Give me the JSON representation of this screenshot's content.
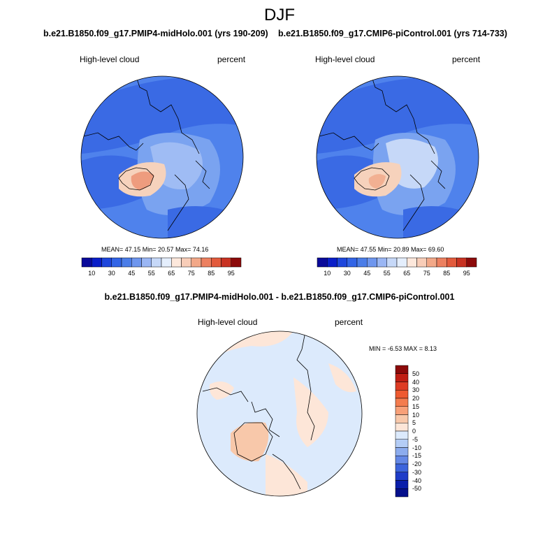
{
  "page_title": "DJF",
  "panels": [
    {
      "title": "b.e21.B1850.f09_g17.PMIP4-midHolo.001 (yrs 190-209)",
      "left_label": "High-level cloud",
      "right_label": "percent",
      "stats": "MEAN=  47.15   Min=  20.57   Max=  74.16"
    },
    {
      "title": "b.e21.B1850.f09_g17.CMIP6-piControl.001 (yrs 714-733)",
      "left_label": "High-level cloud",
      "right_label": "percent",
      "stats": "MEAN=  47.55   Min=  20.89   Max=  69.60"
    }
  ],
  "diff_panel": {
    "title": "b.e21.B1850.f09_g17.PMIP4-midHolo.001 - b.e21.B1850.f09_g17.CMIP6-piControl.001",
    "left_label": "High-level cloud",
    "right_label": "percent",
    "stats": "MIN =  -6.53  MAX =   8.13"
  },
  "colorbar_abs": {
    "labels": [
      "10",
      "30",
      "45",
      "55",
      "65",
      "75",
      "85",
      "95"
    ],
    "colors": [
      "#0a0a9a",
      "#0a1ec8",
      "#1e46dc",
      "#3264e6",
      "#4b7de8",
      "#6e96ee",
      "#9ab6f4",
      "#c6d8f8",
      "#e4eefc",
      "#fde8dc",
      "#f8cdb8",
      "#f2a888",
      "#ec8060",
      "#e25a3c",
      "#c83222",
      "#8c0a0a"
    ]
  },
  "colorbar_diff": {
    "labels": [
      "50",
      "40",
      "30",
      "20",
      "15",
      "10",
      "5",
      "0",
      "-5",
      "-10",
      "-15",
      "-20",
      "-30",
      "-40",
      "-50"
    ],
    "colors": [
      "#8c0a0a",
      "#c01e14",
      "#de3c24",
      "#ee5a30",
      "#f47c4e",
      "#f8a078",
      "#f8c8aa",
      "#fde6d8",
      "#dceafc",
      "#b4cdf6",
      "#8cacee",
      "#6488e6",
      "#3c64dc",
      "#1e3cc8",
      "#0a1eaa",
      "#06108c"
    ]
  }
}
